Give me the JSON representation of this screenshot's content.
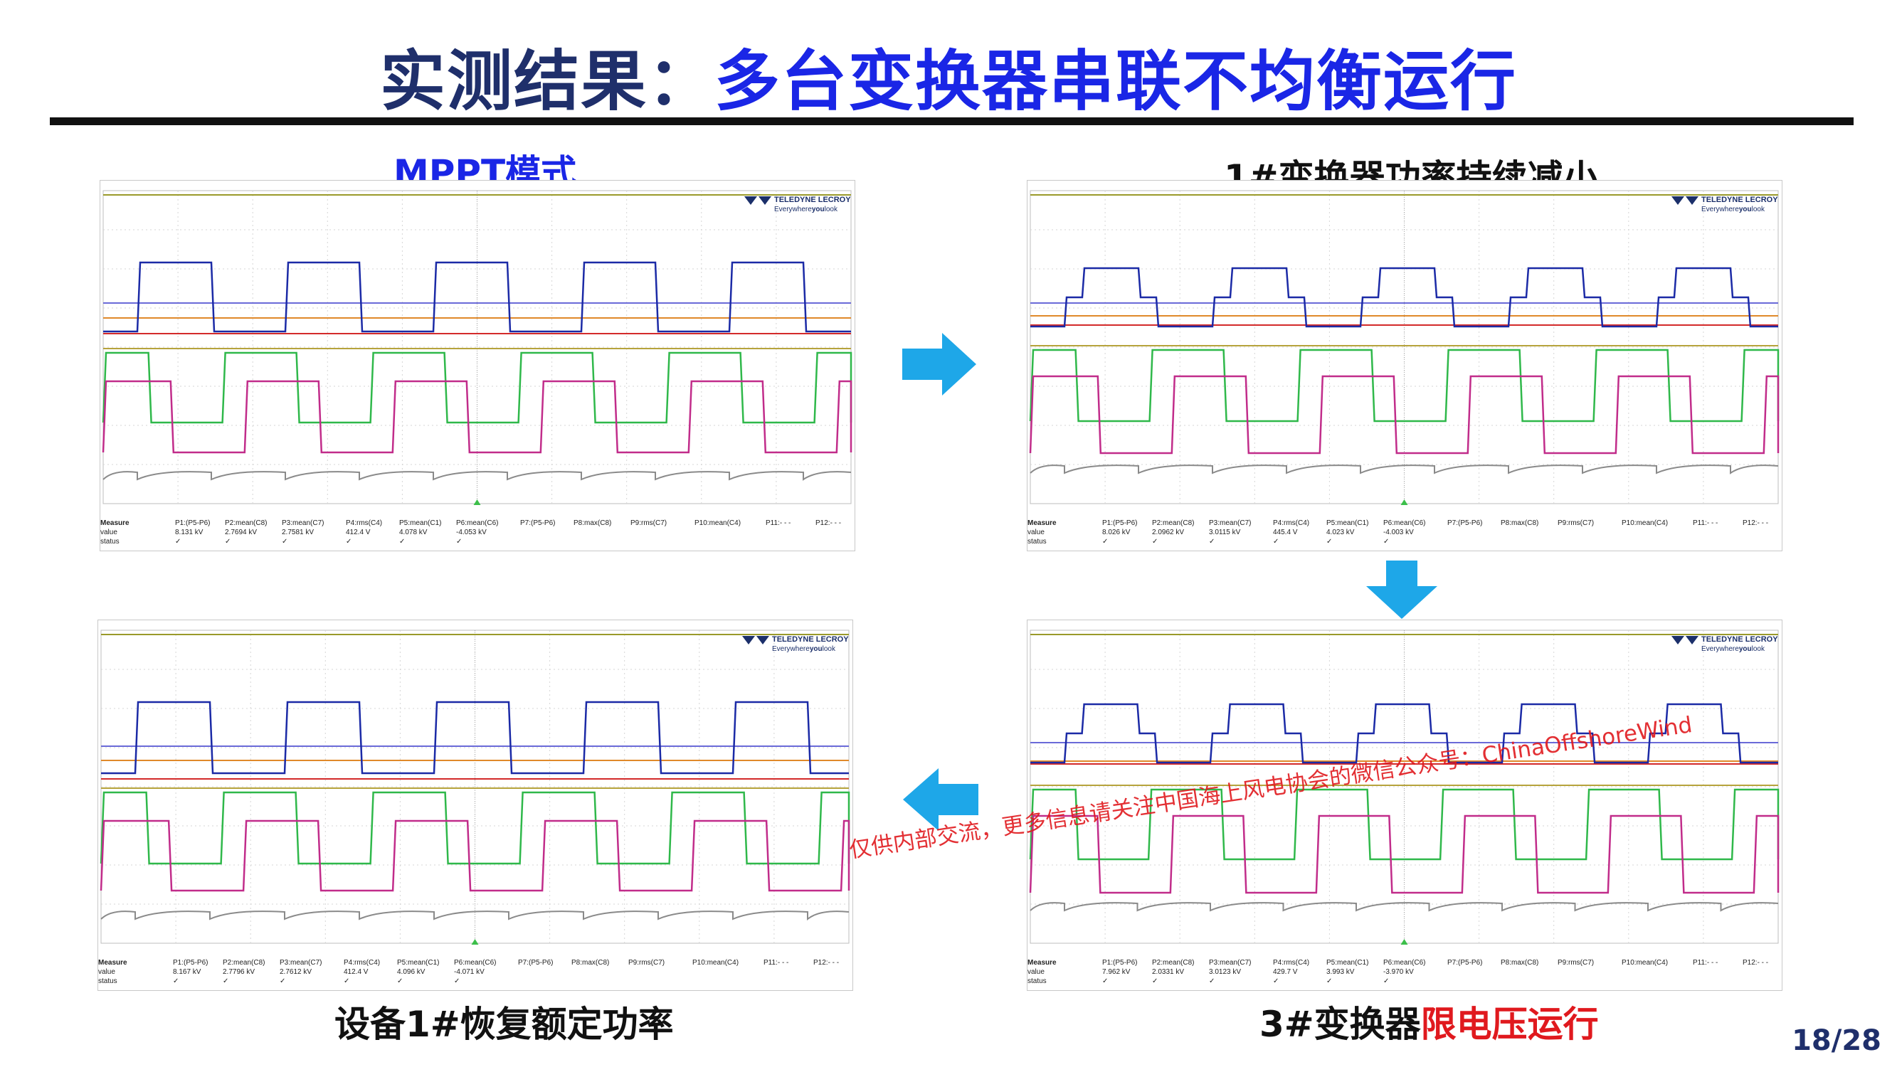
{
  "title": {
    "part1": "实测结果：",
    "part2": "多台变换器串联不均衡运行"
  },
  "captions": {
    "top_left": "MPPT模式",
    "top_right": "1#变换器功率持续减小",
    "bottom_left": "设备1#恢复额定功率",
    "bottom_right_prefix": "3#变换器",
    "bottom_right_highlight": "限电压运行"
  },
  "page_number": "18/28",
  "watermark": "仅供内部交流，更多信息请关注中国海上风电协会的微信公众号：ChinaOffshoreWind",
  "logo": {
    "brand": "TELEDYNE LECROY",
    "tagline_pre": "Everywhere",
    "tagline_bold": "you",
    "tagline_post": "look"
  },
  "colors": {
    "title_dark": "#1f2f6b",
    "title_blue": "#1a26e6",
    "highlight_red": "#e0191e",
    "arrow": "#1ea7e8"
  },
  "scopes": [
    {
      "id": "mppt",
      "headers": [
        "Measure",
        "P1:(P5-P6)",
        "P2:mean(C8)",
        "P3:mean(C7)",
        "P4:rms(C4)",
        "P5:mean(C1)",
        "P6:mean(C6)",
        "P7:(P5-P6)",
        "P8:max(C8)",
        "P9:rms(C7)",
        "P10:mean(C4)",
        "P11:- - -",
        "P12:- - -"
      ],
      "values": [
        "value",
        "8.131 kV",
        "2.7694 kV",
        "2.7581 kV",
        "412.4 V",
        "4.078 kV",
        "-4.053 kV",
        "",
        "",
        "",
        "",
        "",
        ""
      ],
      "status": [
        "status",
        "✓",
        "✓",
        "✓",
        "✓",
        "✓",
        "✓",
        "",
        "",
        "",
        "",
        "",
        ""
      ]
    },
    {
      "id": "reduce",
      "headers": [
        "Measure",
        "P1:(P5-P6)",
        "P2:mean(C8)",
        "P3:mean(C7)",
        "P4:rms(C4)",
        "P5:mean(C1)",
        "P6:mean(C6)",
        "P7:(P5-P6)",
        "P8:max(C8)",
        "P9:rms(C7)",
        "P10:mean(C4)",
        "P11:- - -",
        "P12:- - -"
      ],
      "values": [
        "value",
        "8.026 kV",
        "2.0962 kV",
        "3.0115 kV",
        "445.4 V",
        "4.023 kV",
        "-4.003 kV",
        "",
        "",
        "",
        "",
        "",
        ""
      ],
      "status": [
        "status",
        "✓",
        "✓",
        "✓",
        "✓",
        "✓",
        "✓",
        "",
        "",
        "",
        "",
        "",
        ""
      ]
    },
    {
      "id": "restore",
      "headers": [
        "Measure",
        "P1:(P5-P6)",
        "P2:mean(C8)",
        "P3:mean(C7)",
        "P4:rms(C4)",
        "P5:mean(C1)",
        "P6:mean(C6)",
        "P7:(P5-P6)",
        "P8:max(C8)",
        "P9:rms(C7)",
        "P10:mean(C4)",
        "P11:- - -",
        "P12:- - -"
      ],
      "values": [
        "value",
        "8.167 kV",
        "2.7796 kV",
        "2.7612 kV",
        "412.4 V",
        "4.096 kV",
        "-4.071 kV",
        "",
        "",
        "",
        "",
        "",
        ""
      ],
      "status": [
        "status",
        "✓",
        "✓",
        "✓",
        "✓",
        "✓",
        "✓",
        "",
        "",
        "",
        "",
        "",
        ""
      ]
    },
    {
      "id": "limit",
      "headers": [
        "Measure",
        "P1:(P5-P6)",
        "P2:mean(C8)",
        "P3:mean(C7)",
        "P4:rms(C4)",
        "P5:mean(C1)",
        "P6:mean(C6)",
        "P7:(P5-P6)",
        "P8:max(C8)",
        "P9:rms(C7)",
        "P10:mean(C4)",
        "P11:- - -",
        "P12:- - -"
      ],
      "values": [
        "value",
        "7.962 kV",
        "2.0331 kV",
        "3.0123 kV",
        "429.7 V",
        "3.993 kV",
        "-3.970 kV",
        "",
        "",
        "",
        "",
        "",
        ""
      ],
      "status": [
        "status",
        "✓",
        "✓",
        "✓",
        "✓",
        "✓",
        "✓",
        "",
        "",
        "",
        "",
        "",
        ""
      ]
    }
  ]
}
